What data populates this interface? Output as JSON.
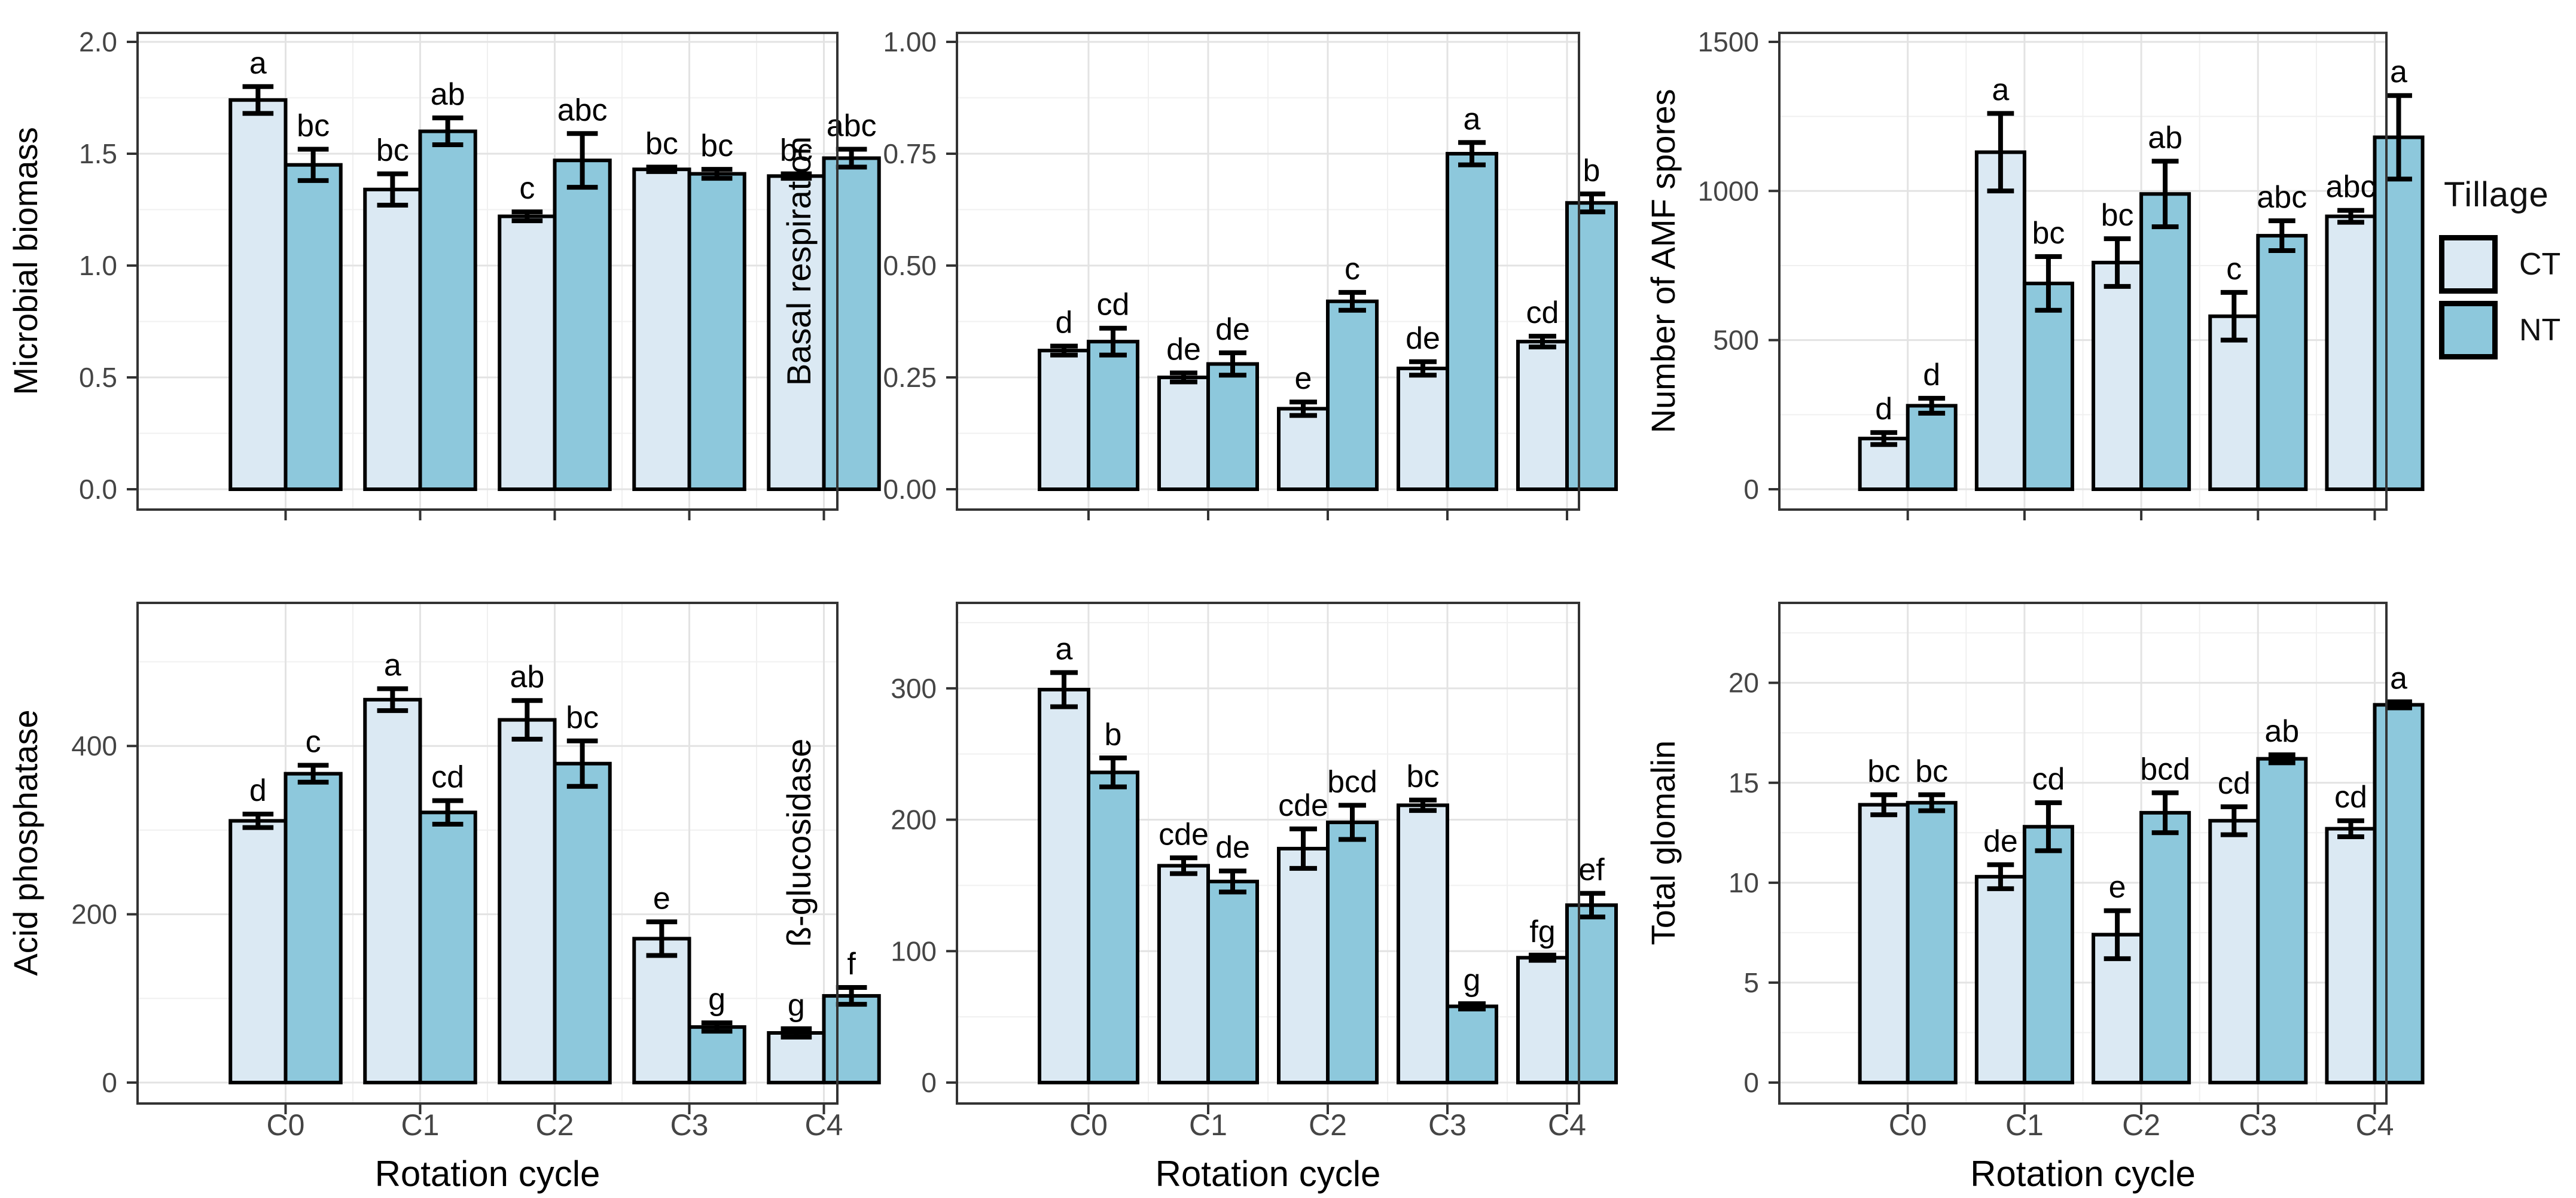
{
  "figure": {
    "background": "#ffffff",
    "x_axis_title": "Rotation cycle",
    "categories": [
      "C0",
      "C1",
      "C2",
      "C3",
      "C4"
    ]
  },
  "legend": {
    "title": "Tillage",
    "position": "right",
    "entries": [
      {
        "label": "CT",
        "color": "#dbe9f3"
      },
      {
        "label": "NT",
        "color": "#8dc8dc"
      }
    ]
  },
  "colors": {
    "bar_stroke": "#000000",
    "error_bar": "#000000",
    "grid_major": "#e3e3e3",
    "grid_minor": "#f0f0f0",
    "panel_border": "#333333",
    "tick_mark": "#333333",
    "tick_text": "#454545",
    "title_text": "#000000",
    "letter_text": "#000000"
  },
  "chart_data": [
    {
      "type": "bar",
      "ylabel": "Microbial biomass",
      "xlabel": "",
      "show_x_tick_labels": false,
      "grid": true,
      "ylim": [
        0,
        2.04
      ],
      "ytick_values": [
        0,
        0.5,
        1.0,
        1.5,
        2.0
      ],
      "ytick_labels": [
        "0.0",
        "0.5",
        "1.0",
        "1.5",
        "2.0"
      ],
      "categories": [
        "C0",
        "C1",
        "C2",
        "C3",
        "C4"
      ],
      "series": [
        {
          "name": "CT",
          "values": [
            1.74,
            1.34,
            1.22,
            1.43,
            1.4
          ],
          "errors": [
            0.06,
            0.07,
            0.02,
            0.01,
            0.01
          ],
          "letters": [
            "a",
            "bc",
            "c",
            "bc",
            "bc"
          ]
        },
        {
          "name": "NT",
          "values": [
            1.45,
            1.6,
            1.47,
            1.41,
            1.48
          ],
          "errors": [
            0.07,
            0.06,
            0.12,
            0.02,
            0.04
          ],
          "letters": [
            "bc",
            "ab",
            "abc",
            "bc",
            "abc"
          ]
        }
      ]
    },
    {
      "type": "bar",
      "ylabel": "Basal respiration",
      "xlabel": "",
      "show_x_tick_labels": false,
      "grid": true,
      "ylim": [
        0,
        1.02
      ],
      "ytick_values": [
        0,
        0.25,
        0.5,
        0.75,
        1.0
      ],
      "ytick_labels": [
        "0.00",
        "0.25",
        "0.50",
        "0.75",
        "1.00"
      ],
      "categories": [
        "C0",
        "C1",
        "C2",
        "C3",
        "C4"
      ],
      "series": [
        {
          "name": "CT",
          "values": [
            0.31,
            0.25,
            0.18,
            0.27,
            0.33
          ],
          "errors": [
            0.01,
            0.01,
            0.015,
            0.015,
            0.012
          ],
          "letters": [
            "d",
            "de",
            "e",
            "de",
            "cd"
          ]
        },
        {
          "name": "NT",
          "values": [
            0.33,
            0.28,
            0.42,
            0.75,
            0.64
          ],
          "errors": [
            0.03,
            0.025,
            0.02,
            0.025,
            0.02
          ],
          "letters": [
            "cd",
            "de",
            "c",
            "a",
            "b"
          ]
        }
      ]
    },
    {
      "type": "bar",
      "ylabel": "Number of AMF spores",
      "xlabel": "",
      "show_x_tick_labels": false,
      "grid": true,
      "ylim": [
        0,
        1530
      ],
      "ytick_values": [
        0,
        500,
        1000,
        1500
      ],
      "ytick_labels": [
        "0",
        "500",
        "1000",
        "1500"
      ],
      "categories": [
        "C0",
        "C1",
        "C2",
        "C3",
        "C4"
      ],
      "series": [
        {
          "name": "CT",
          "values": [
            170,
            1130,
            760,
            580,
            915
          ],
          "errors": [
            20,
            130,
            80,
            80,
            20
          ],
          "letters": [
            "d",
            "a",
            "bc",
            "c",
            "abc"
          ]
        },
        {
          "name": "NT",
          "values": [
            280,
            690,
            990,
            850,
            1180
          ],
          "errors": [
            25,
            90,
            110,
            50,
            140
          ],
          "letters": [
            "d",
            "bc",
            "ab",
            "abc",
            "a"
          ]
        }
      ]
    },
    {
      "type": "bar",
      "ylabel": "Acid phosphatase",
      "xlabel": "Rotation cycle",
      "show_x_tick_labels": true,
      "grid": true,
      "ylim": [
        0,
        570
      ],
      "ytick_values": [
        0,
        200,
        400
      ],
      "ytick_labels": [
        "0",
        "200",
        "400"
      ],
      "categories": [
        "C0",
        "C1",
        "C2",
        "C3",
        "C4"
      ],
      "series": [
        {
          "name": "CT",
          "values": [
            311,
            455,
            431,
            171,
            59
          ],
          "errors": [
            8,
            13,
            23,
            20,
            5
          ],
          "letters": [
            "d",
            "a",
            "ab",
            "e",
            "g"
          ]
        },
        {
          "name": "NT",
          "values": [
            367,
            321,
            379,
            66,
            103
          ],
          "errors": [
            10,
            14,
            27,
            5,
            10
          ],
          "letters": [
            "c",
            "cd",
            "bc",
            "g",
            "f"
          ]
        }
      ]
    },
    {
      "type": "bar",
      "ylabel": "ß-glucosidase",
      "xlabel": "Rotation cycle",
      "show_x_tick_labels": true,
      "grid": true,
      "ylim": [
        0,
        365
      ],
      "ytick_values": [
        0,
        100,
        200,
        300
      ],
      "ytick_labels": [
        "0",
        "100",
        "200",
        "300"
      ],
      "categories": [
        "C0",
        "C1",
        "C2",
        "C3",
        "C4"
      ],
      "series": [
        {
          "name": "CT",
          "values": [
            299,
            165,
            178,
            211,
            95
          ],
          "errors": [
            13,
            6,
            15,
            4,
            2
          ],
          "letters": [
            "a",
            "cde",
            "cde",
            "bc",
            "fg"
          ]
        },
        {
          "name": "NT",
          "values": [
            236,
            153,
            198,
            58,
            135
          ],
          "errors": [
            11,
            8,
            13,
            2,
            9
          ],
          "letters": [
            "b",
            "de",
            "bcd",
            "g",
            "ef"
          ]
        }
      ]
    },
    {
      "type": "bar",
      "ylabel": "Total glomalin",
      "xlabel": "Rotation cycle",
      "show_x_tick_labels": true,
      "grid": true,
      "ylim": [
        0,
        24
      ],
      "ytick_values": [
        0,
        5,
        10,
        15,
        20
      ],
      "ytick_labels": [
        "0",
        "5",
        "10",
        "15",
        "20"
      ],
      "categories": [
        "C0",
        "C1",
        "C2",
        "C3",
        "C4"
      ],
      "series": [
        {
          "name": "CT",
          "values": [
            13.9,
            10.3,
            7.4,
            13.1,
            12.7
          ],
          "errors": [
            0.5,
            0.6,
            1.2,
            0.7,
            0.4
          ],
          "letters": [
            "bc",
            "de",
            "e",
            "cd",
            "cd"
          ]
        },
        {
          "name": "NT",
          "values": [
            14.0,
            12.8,
            13.5,
            16.2,
            18.9
          ],
          "errors": [
            0.4,
            1.2,
            1.0,
            0.2,
            0.15
          ],
          "letters": [
            "bc",
            "cd",
            "bcd",
            "ab",
            "a"
          ]
        }
      ]
    }
  ]
}
